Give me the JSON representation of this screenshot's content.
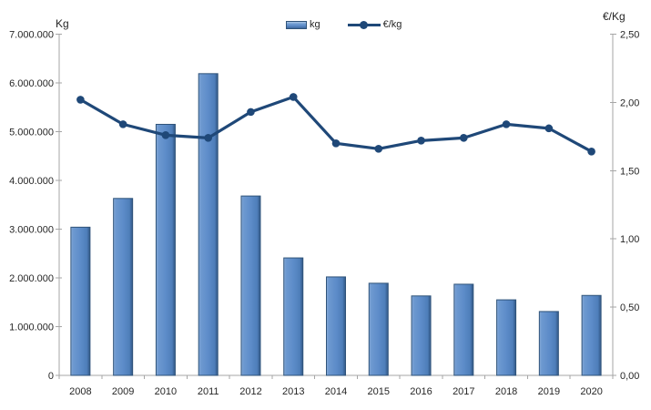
{
  "chart_data": {
    "type": "combo-bar-line",
    "title": "",
    "categories": [
      "2008",
      "2009",
      "2010",
      "2011",
      "2012",
      "2013",
      "2014",
      "2015",
      "2016",
      "2017",
      "2018",
      "2019",
      "2020"
    ],
    "series": [
      {
        "name": "kg",
        "type": "bar",
        "axis": "left",
        "color": "#5d8cc9",
        "values": [
          3040000,
          3630000,
          5150000,
          6190000,
          3680000,
          2410000,
          2020000,
          1890000,
          1630000,
          1870000,
          1550000,
          1310000,
          1640000
        ]
      },
      {
        "name": "€/kg",
        "type": "line",
        "axis": "right",
        "color": "#1f4878",
        "values": [
          2.02,
          1.84,
          1.76,
          1.74,
          1.93,
          2.04,
          1.7,
          1.66,
          1.72,
          1.74,
          1.84,
          1.81,
          1.64
        ]
      }
    ],
    "left_axis": {
      "title": "Kg",
      "min": 0,
      "max": 7000000,
      "tick_interval": 1000000,
      "tick_labels": [
        "0",
        "1.000.000",
        "2.000.000",
        "3.000.000",
        "4.000.000",
        "5.000.000",
        "6.000.000",
        "7.000.000"
      ]
    },
    "right_axis": {
      "title": "€/Kg",
      "min": 0,
      "max": 2.5,
      "tick_interval": 0.5,
      "tick_labels": [
        "0,00",
        "0,50",
        "1,00",
        "1,50",
        "2,00",
        "2,50"
      ]
    },
    "legend": {
      "position": "top",
      "items": [
        {
          "label": "kg",
          "marker": "bar-swatch"
        },
        {
          "label": "€/kg",
          "marker": "line-with-dot"
        }
      ]
    },
    "grid": false,
    "colors": {
      "axis_line": "#a6a6a6",
      "text": "#262626",
      "bar_fill_mid": "#5d8cc9",
      "bar_border": "#2f5379",
      "line": "#1f4878",
      "background": "#ffffff"
    }
  }
}
